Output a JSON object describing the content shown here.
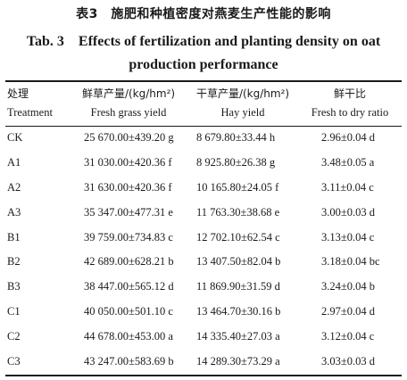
{
  "caption": {
    "cn": "表3　施肥和种植密度对燕麦生产性能的影响",
    "en_line1": "Tab. 3　Effects of fertilization and planting density on oat",
    "en_line2": "production performance"
  },
  "table": {
    "headers": [
      {
        "cn": "处理",
        "en": "Treatment"
      },
      {
        "cn": "鲜草产量/(kg/hm²)",
        "en": "Fresh grass yield"
      },
      {
        "cn": "干草产量/(kg/hm²)",
        "en": "Hay yield"
      },
      {
        "cn": "鲜干比",
        "en": "Fresh to dry ratio"
      }
    ],
    "rows": [
      {
        "treatment": "CK",
        "fresh": "25 670.00±439.20 g",
        "hay": "8 679.80±33.44 h",
        "ratio": "2.96±0.04 d"
      },
      {
        "treatment": "A1",
        "fresh": "31 030.00±420.36 f",
        "hay": "8 925.80±26.38 g",
        "ratio": "3.48±0.05 a"
      },
      {
        "treatment": "A2",
        "fresh": "31 630.00±420.36 f",
        "hay": "10 165.80±24.05 f",
        "ratio": "3.11±0.04 c"
      },
      {
        "treatment": "A3",
        "fresh": "35 347.00±477.31 e",
        "hay": "11 763.30±38.68 e",
        "ratio": "3.00±0.03 d"
      },
      {
        "treatment": "B1",
        "fresh": "39 759.00±734.83 c",
        "hay": "12 702.10±62.54 c",
        "ratio": "3.13±0.04 c"
      },
      {
        "treatment": "B2",
        "fresh": "42 689.00±628.21 b",
        "hay": "13 407.50±82.04 b",
        "ratio": "3.18±0.04 bc"
      },
      {
        "treatment": "B3",
        "fresh": "38 447.00±565.12 d",
        "hay": "11 869.90±31.59 d",
        "ratio": "3.24±0.04 b"
      },
      {
        "treatment": "C1",
        "fresh": "40 050.00±501.10 c",
        "hay": "13 464.70±30.16 b",
        "ratio": "2.97±0.04 d"
      },
      {
        "treatment": "C2",
        "fresh": "44 678.00±453.00 a",
        "hay": "14 335.40±27.03 a",
        "ratio": "3.12±0.04 c"
      },
      {
        "treatment": "C3",
        "fresh": "43 247.00±583.69 b",
        "hay": "14 289.30±73.29 a",
        "ratio": "3.03±0.03 d"
      }
    ]
  }
}
